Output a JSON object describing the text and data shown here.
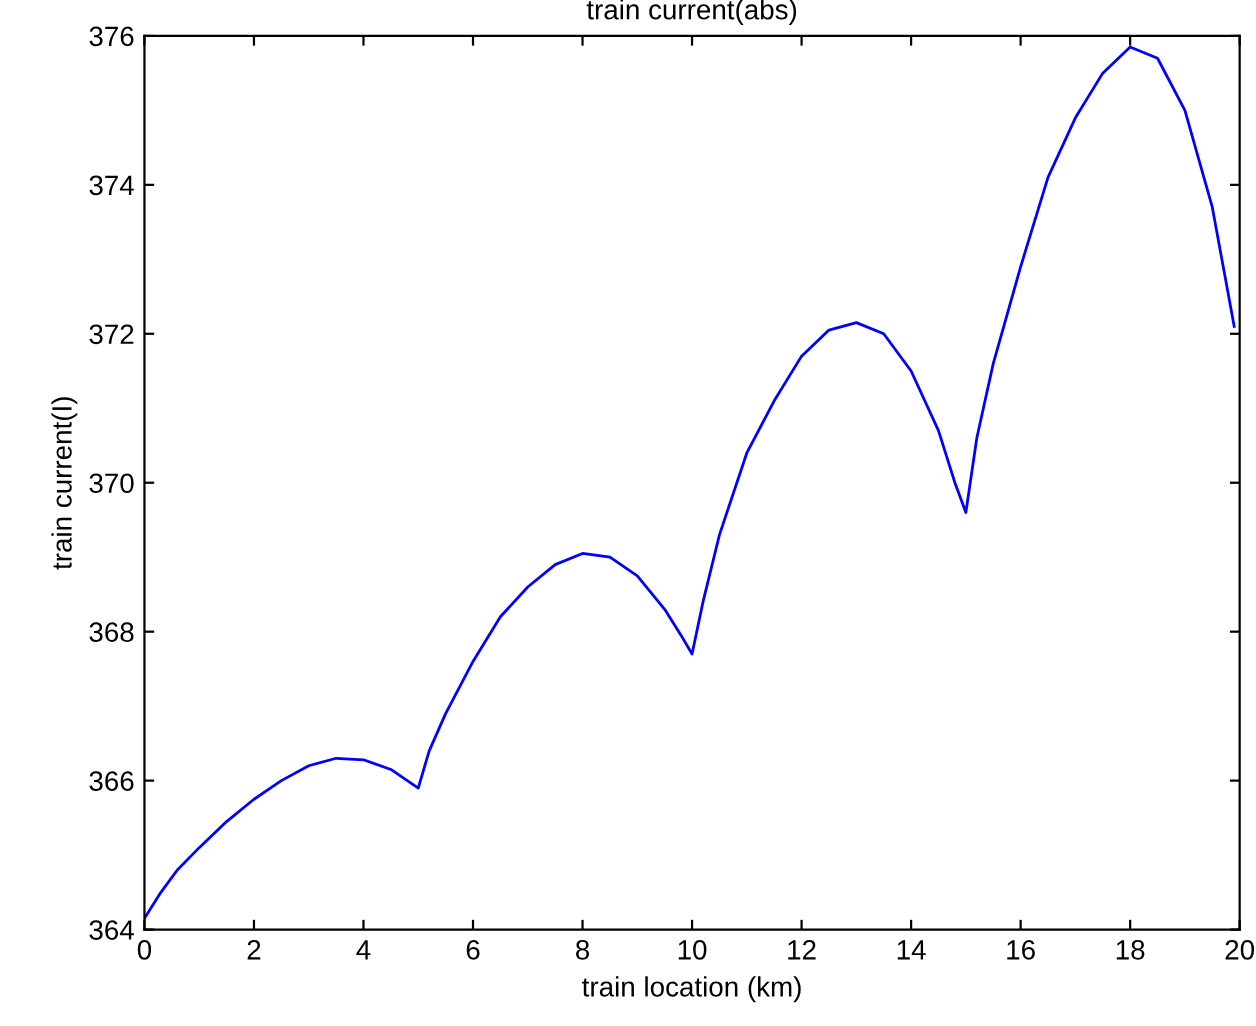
{
  "chart_data": {
    "type": "line",
    "title": "train current(abs)",
    "xlabel": "train location (km)",
    "ylabel": "train current(I)",
    "series": [
      {
        "color": "#0000ff",
        "x": [
          0,
          0.3,
          0.6,
          1,
          1.5,
          2,
          2.5,
          3,
          3.5,
          4,
          4.5,
          4.8,
          5,
          5.2,
          5.5,
          6,
          6.5,
          7,
          7.5,
          8,
          8.5,
          9,
          9.5,
          9.8,
          10,
          10.2,
          10.5,
          11,
          11.5,
          12,
          12.5,
          13,
          13.5,
          14,
          14.5,
          14.8,
          15,
          15.2,
          15.5,
          16,
          16.5,
          17,
          17.5,
          18,
          18.5,
          19,
          19.5,
          19.9
        ],
        "values": [
          364.15,
          364.5,
          364.8,
          365.1,
          365.45,
          365.75,
          366.0,
          366.2,
          366.3,
          366.28,
          366.15,
          366.0,
          365.9,
          366.4,
          366.9,
          367.6,
          368.2,
          368.6,
          368.9,
          369.05,
          369.0,
          368.75,
          368.3,
          367.95,
          367.7,
          368.4,
          369.3,
          370.4,
          371.1,
          371.7,
          372.05,
          372.15,
          372.0,
          371.5,
          370.7,
          370.0,
          369.6,
          370.6,
          371.6,
          372.9,
          374.1,
          374.9,
          375.5,
          375.85,
          375.7,
          375.0,
          373.7,
          372.1
        ]
      }
    ],
    "xlim": [
      0,
      20
    ],
    "xticks": [
      0,
      2,
      4,
      6,
      8,
      10,
      12,
      14,
      16,
      18,
      20
    ],
    "ylim": [
      364,
      376
    ],
    "yticks": [
      364,
      366,
      368,
      370,
      372,
      374,
      376
    ],
    "grid": false,
    "marker": "none",
    "line_style": "solid"
  }
}
